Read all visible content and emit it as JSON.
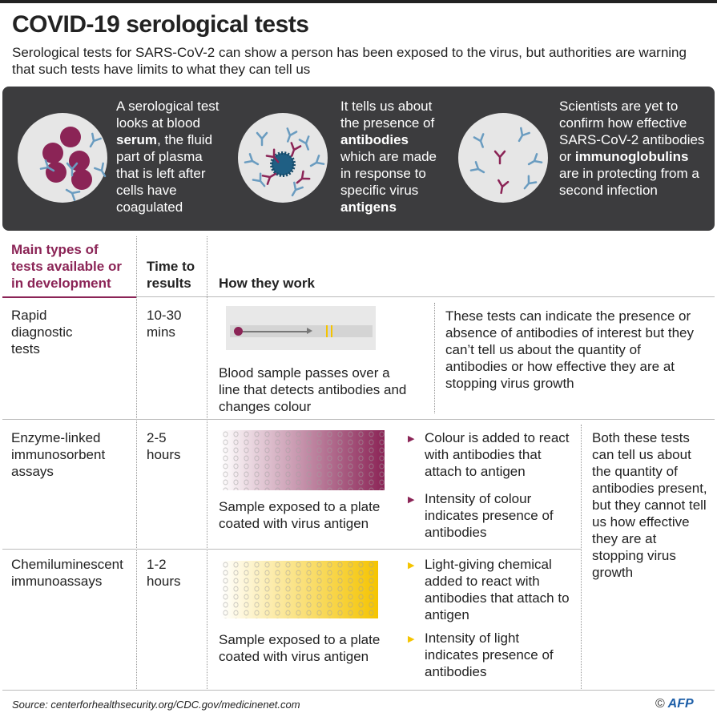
{
  "title": "COVID-19 serological tests",
  "subtitle": "Serological tests for SARS-CoV-2 can show a person has been exposed to the virus, but authorities are warning that such tests have limits to what they can tell us",
  "panel": [
    {
      "pre": "A serological test looks at blood ",
      "bold": "serum",
      "post": ", the fluid part of plasma that is left after cells have coagulated"
    },
    {
      "pre": "It tells us about the presence of ",
      "bold": "antibodies",
      "post": " which are made in response to specific virus ",
      "bold2": "antigens"
    },
    {
      "pre": "Scientists are yet to confirm how effective SARS-CoV-2 antibodies or ",
      "bold": "immunoglobulins",
      "post": " are in protecting from a second infection"
    }
  ],
  "table": {
    "headers": {
      "types": "Main types of tests available or in development",
      "time": "Time to results",
      "how": "How they work"
    },
    "rows": [
      {
        "name": "Rapid diagnostic tests",
        "time": "10-30 mins",
        "caption": "Blood sample passes over a line that detects antibodies and changes colour",
        "note": "These tests can indicate the presence or absence of antibodies of interest but they can’t tell us about the quantity of antibodies or how effective they are at stopping virus growth"
      },
      {
        "name": "Enzyme-linked immunosorbent assays",
        "time": "2-5 hours",
        "caption": "Sample exposed to a plate coated with virus antigen",
        "bullets": [
          "Colour is added to react with antibodies that attach to antigen",
          "Intensity of colour indicates presence of antibodies"
        ]
      },
      {
        "name": "Chemiluminescent immunoassays",
        "time": "1-2 hours",
        "caption": "Sample exposed to a plate coated with virus antigen",
        "bullets": [
          "Light-giving chemical added to react with antibodies that attach to antigen",
          "Intensity of light indicates presence of antibodies"
        ]
      }
    ],
    "shared_note": "Both these tests can tell us about the quantity of antibodies present, but they cannot tell us how effective they are at stopping virus growth"
  },
  "source": "Source: centerforhealthsecurity.org/CDC.gov/medicinenet.com",
  "credit": {
    "symbol": "©",
    "logo": "AFP"
  },
  "colors": {
    "purple": "#8b2456",
    "yellow": "#f5c400",
    "blue": "#6a9cc0",
    "panel": "#3c3c3e"
  }
}
